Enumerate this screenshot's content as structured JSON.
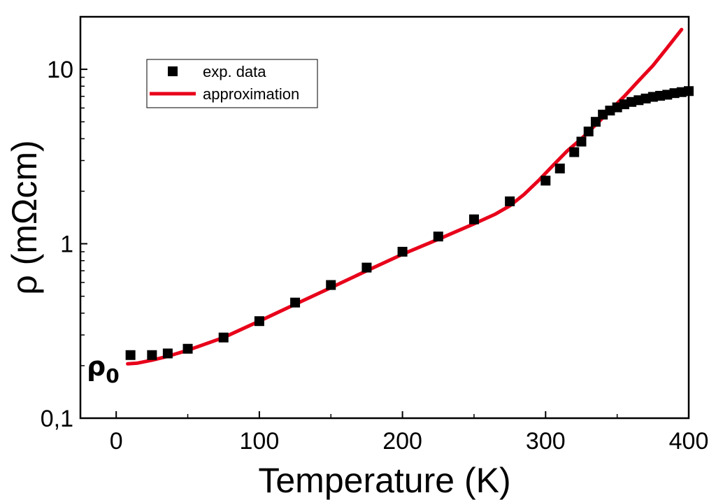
{
  "chart_data": {
    "type": "scatter",
    "xlabel": "Temperature (K)",
    "ylabel": "ρ (mΩcm)",
    "xlim": [
      -25,
      400
    ],
    "ylim": [
      0.1,
      20
    ],
    "yscale": "log",
    "xticks": [
      0,
      100,
      200,
      300,
      400
    ],
    "xtick_labels": [
      "0",
      "100",
      "200",
      "300",
      "400"
    ],
    "yticks": [
      0.1,
      1,
      10
    ],
    "ytick_labels": [
      "0,1",
      "1",
      "10"
    ],
    "grid": false,
    "legend_position": "top-left",
    "colors": {
      "data": "#000000",
      "fit": "#e8001a"
    },
    "annotation": {
      "text": "ρ",
      "subscript": "0"
    },
    "series": [
      {
        "name": "exp. data",
        "kind": "scatter",
        "marker": "square",
        "x": [
          10,
          25,
          36,
          50,
          75,
          100,
          125,
          150,
          175,
          200,
          225,
          250,
          275,
          300,
          310,
          320,
          325,
          330,
          335,
          340,
          345,
          350,
          355,
          360,
          365,
          370,
          375,
          380,
          385,
          390,
          395,
          400
        ],
        "y": [
          0.23,
          0.23,
          0.235,
          0.25,
          0.29,
          0.36,
          0.46,
          0.58,
          0.73,
          0.9,
          1.1,
          1.38,
          1.75,
          2.3,
          2.7,
          3.35,
          3.85,
          4.4,
          5.0,
          5.5,
          5.8,
          6.05,
          6.3,
          6.5,
          6.65,
          6.8,
          6.95,
          7.05,
          7.15,
          7.3,
          7.4,
          7.5
        ]
      },
      {
        "name": "approximation",
        "kind": "line",
        "x": [
          8,
          15,
          25,
          35,
          50,
          75,
          100,
          125,
          150,
          175,
          200,
          225,
          250,
          265,
          275,
          285,
          295,
          305,
          315,
          325,
          335,
          345,
          355,
          365,
          375,
          385,
          395
        ],
        "y": [
          0.205,
          0.207,
          0.215,
          0.225,
          0.245,
          0.29,
          0.36,
          0.45,
          0.56,
          0.7,
          0.87,
          1.06,
          1.3,
          1.48,
          1.65,
          1.92,
          2.3,
          2.8,
          3.4,
          4.0,
          4.8,
          5.8,
          7.0,
          8.6,
          10.5,
          13.3,
          16.9
        ]
      }
    ]
  }
}
